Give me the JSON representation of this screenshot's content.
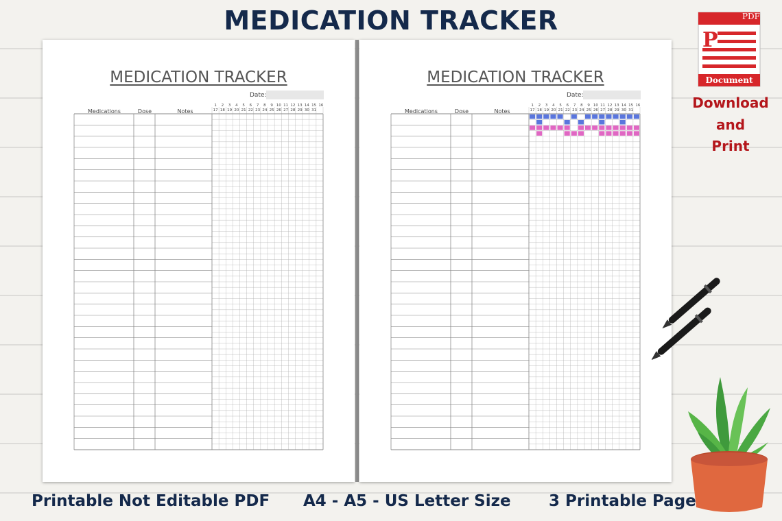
{
  "headline": "MEDICATION TRACKER",
  "pages": [
    {
      "title": "MEDICATION TRACKER",
      "date_label": "Date:",
      "columns": [
        "Medications",
        "Dose",
        "Notes"
      ],
      "days_top": [
        "1",
        "2",
        "3",
        "4",
        "5",
        "6",
        "7",
        "8",
        "9",
        "10",
        "11",
        "12",
        "13",
        "14",
        "15",
        "16"
      ],
      "days_bottom": [
        "17",
        "18",
        "19",
        "20",
        "21",
        "22",
        "23",
        "24",
        "25",
        "26",
        "27",
        "28",
        "29",
        "30",
        "31"
      ],
      "filled": false
    },
    {
      "title": "MEDICATION TRACKER",
      "date_label": "Date:",
      "columns": [
        "Medications",
        "Dose",
        "Notes"
      ],
      "days_top": [
        "1",
        "2",
        "3",
        "4",
        "5",
        "6",
        "7",
        "8",
        "9",
        "10",
        "11",
        "12",
        "13",
        "14",
        "15",
        "16"
      ],
      "days_bottom": [
        "17",
        "18",
        "19",
        "20",
        "21",
        "22",
        "23",
        "24",
        "25",
        "26",
        "27",
        "28",
        "29",
        "30",
        "31"
      ],
      "filled": true,
      "sample_marks": [
        {
          "row": 0,
          "color": "#5a76dd",
          "cells": [
            0,
            1,
            2,
            3,
            4,
            6,
            8,
            9,
            10,
            11,
            12,
            13,
            14,
            15
          ]
        },
        {
          "row": 1,
          "color": "#5a76dd",
          "cells": [
            1,
            5,
            7,
            10,
            13
          ]
        },
        {
          "row": 2,
          "color": "#e067c3",
          "cells": [
            0,
            1,
            2,
            3,
            4,
            5,
            7,
            8,
            9,
            10,
            11,
            12,
            13,
            14,
            15
          ]
        },
        {
          "row": 3,
          "color": "#e067c3",
          "cells": [
            1,
            5,
            6,
            7,
            10,
            11,
            12,
            13,
            14,
            15
          ]
        }
      ]
    }
  ],
  "footer": {
    "left": "Printable Not Editable PDF",
    "center": "A4 - A5 - US Letter Size",
    "right": "3 Printable Page"
  },
  "pdf_badge": {
    "top_label": "PDF",
    "letter": "P",
    "bottom_label": "Document",
    "color": "#d7262a"
  },
  "download": [
    "Download",
    "and",
    "Print"
  ],
  "colors": {
    "headline": "#14294b",
    "download": "#b4161b",
    "grid_line": "#8a8a8a"
  }
}
